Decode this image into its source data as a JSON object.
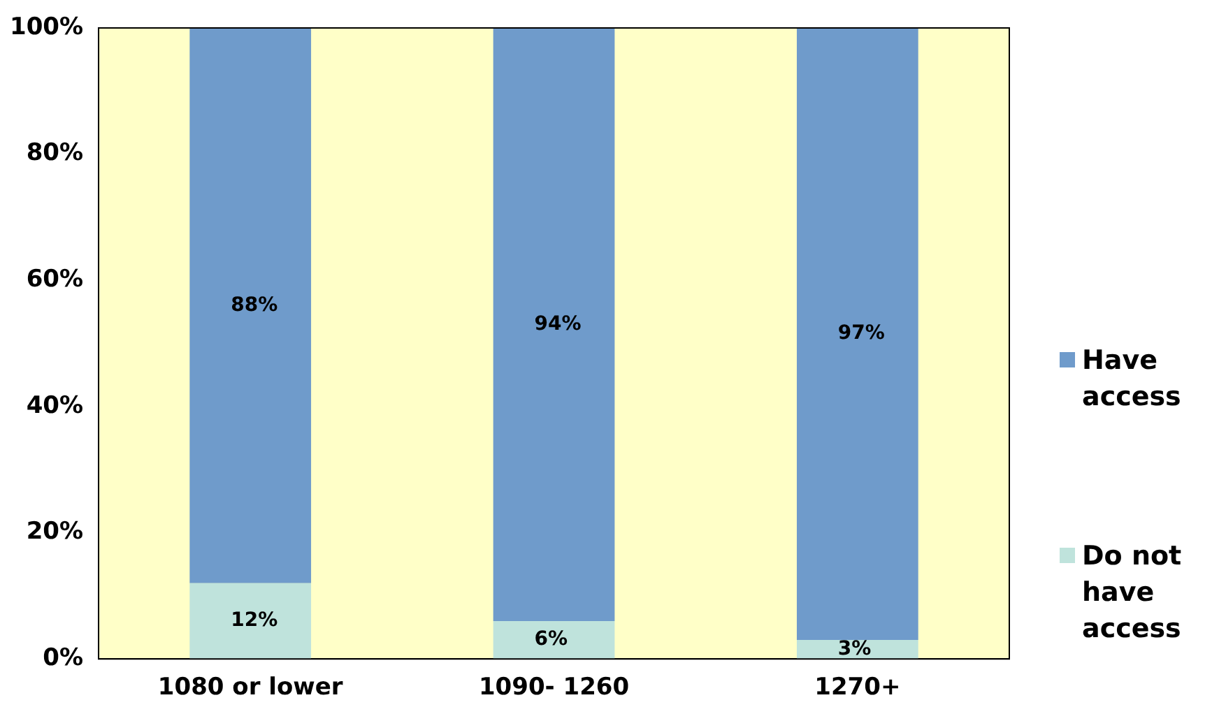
{
  "chart_data": {
    "type": "bar",
    "stacked": true,
    "categories": [
      "1080 or lower",
      "1090- 1260",
      "1270+"
    ],
    "series": [
      {
        "name": "Do not have access",
        "color": "#bfe3dc",
        "values": [
          12,
          6,
          3
        ],
        "value_labels": [
          "12%",
          "6%",
          "3%"
        ]
      },
      {
        "name": "Have access",
        "color": "#6f9bcb",
        "values": [
          88,
          94,
          97
        ],
        "value_labels": [
          "88%",
          "94%",
          "97%"
        ]
      }
    ],
    "ylim": [
      0,
      100
    ],
    "yticks": [
      {
        "value": 0,
        "label": "0%"
      },
      {
        "value": 20,
        "label": "20%"
      },
      {
        "value": 40,
        "label": "40%"
      },
      {
        "value": 60,
        "label": "60%"
      },
      {
        "value": 80,
        "label": "80%"
      },
      {
        "value": 100,
        "label": "100%"
      }
    ],
    "grid": false,
    "legend": "right"
  }
}
